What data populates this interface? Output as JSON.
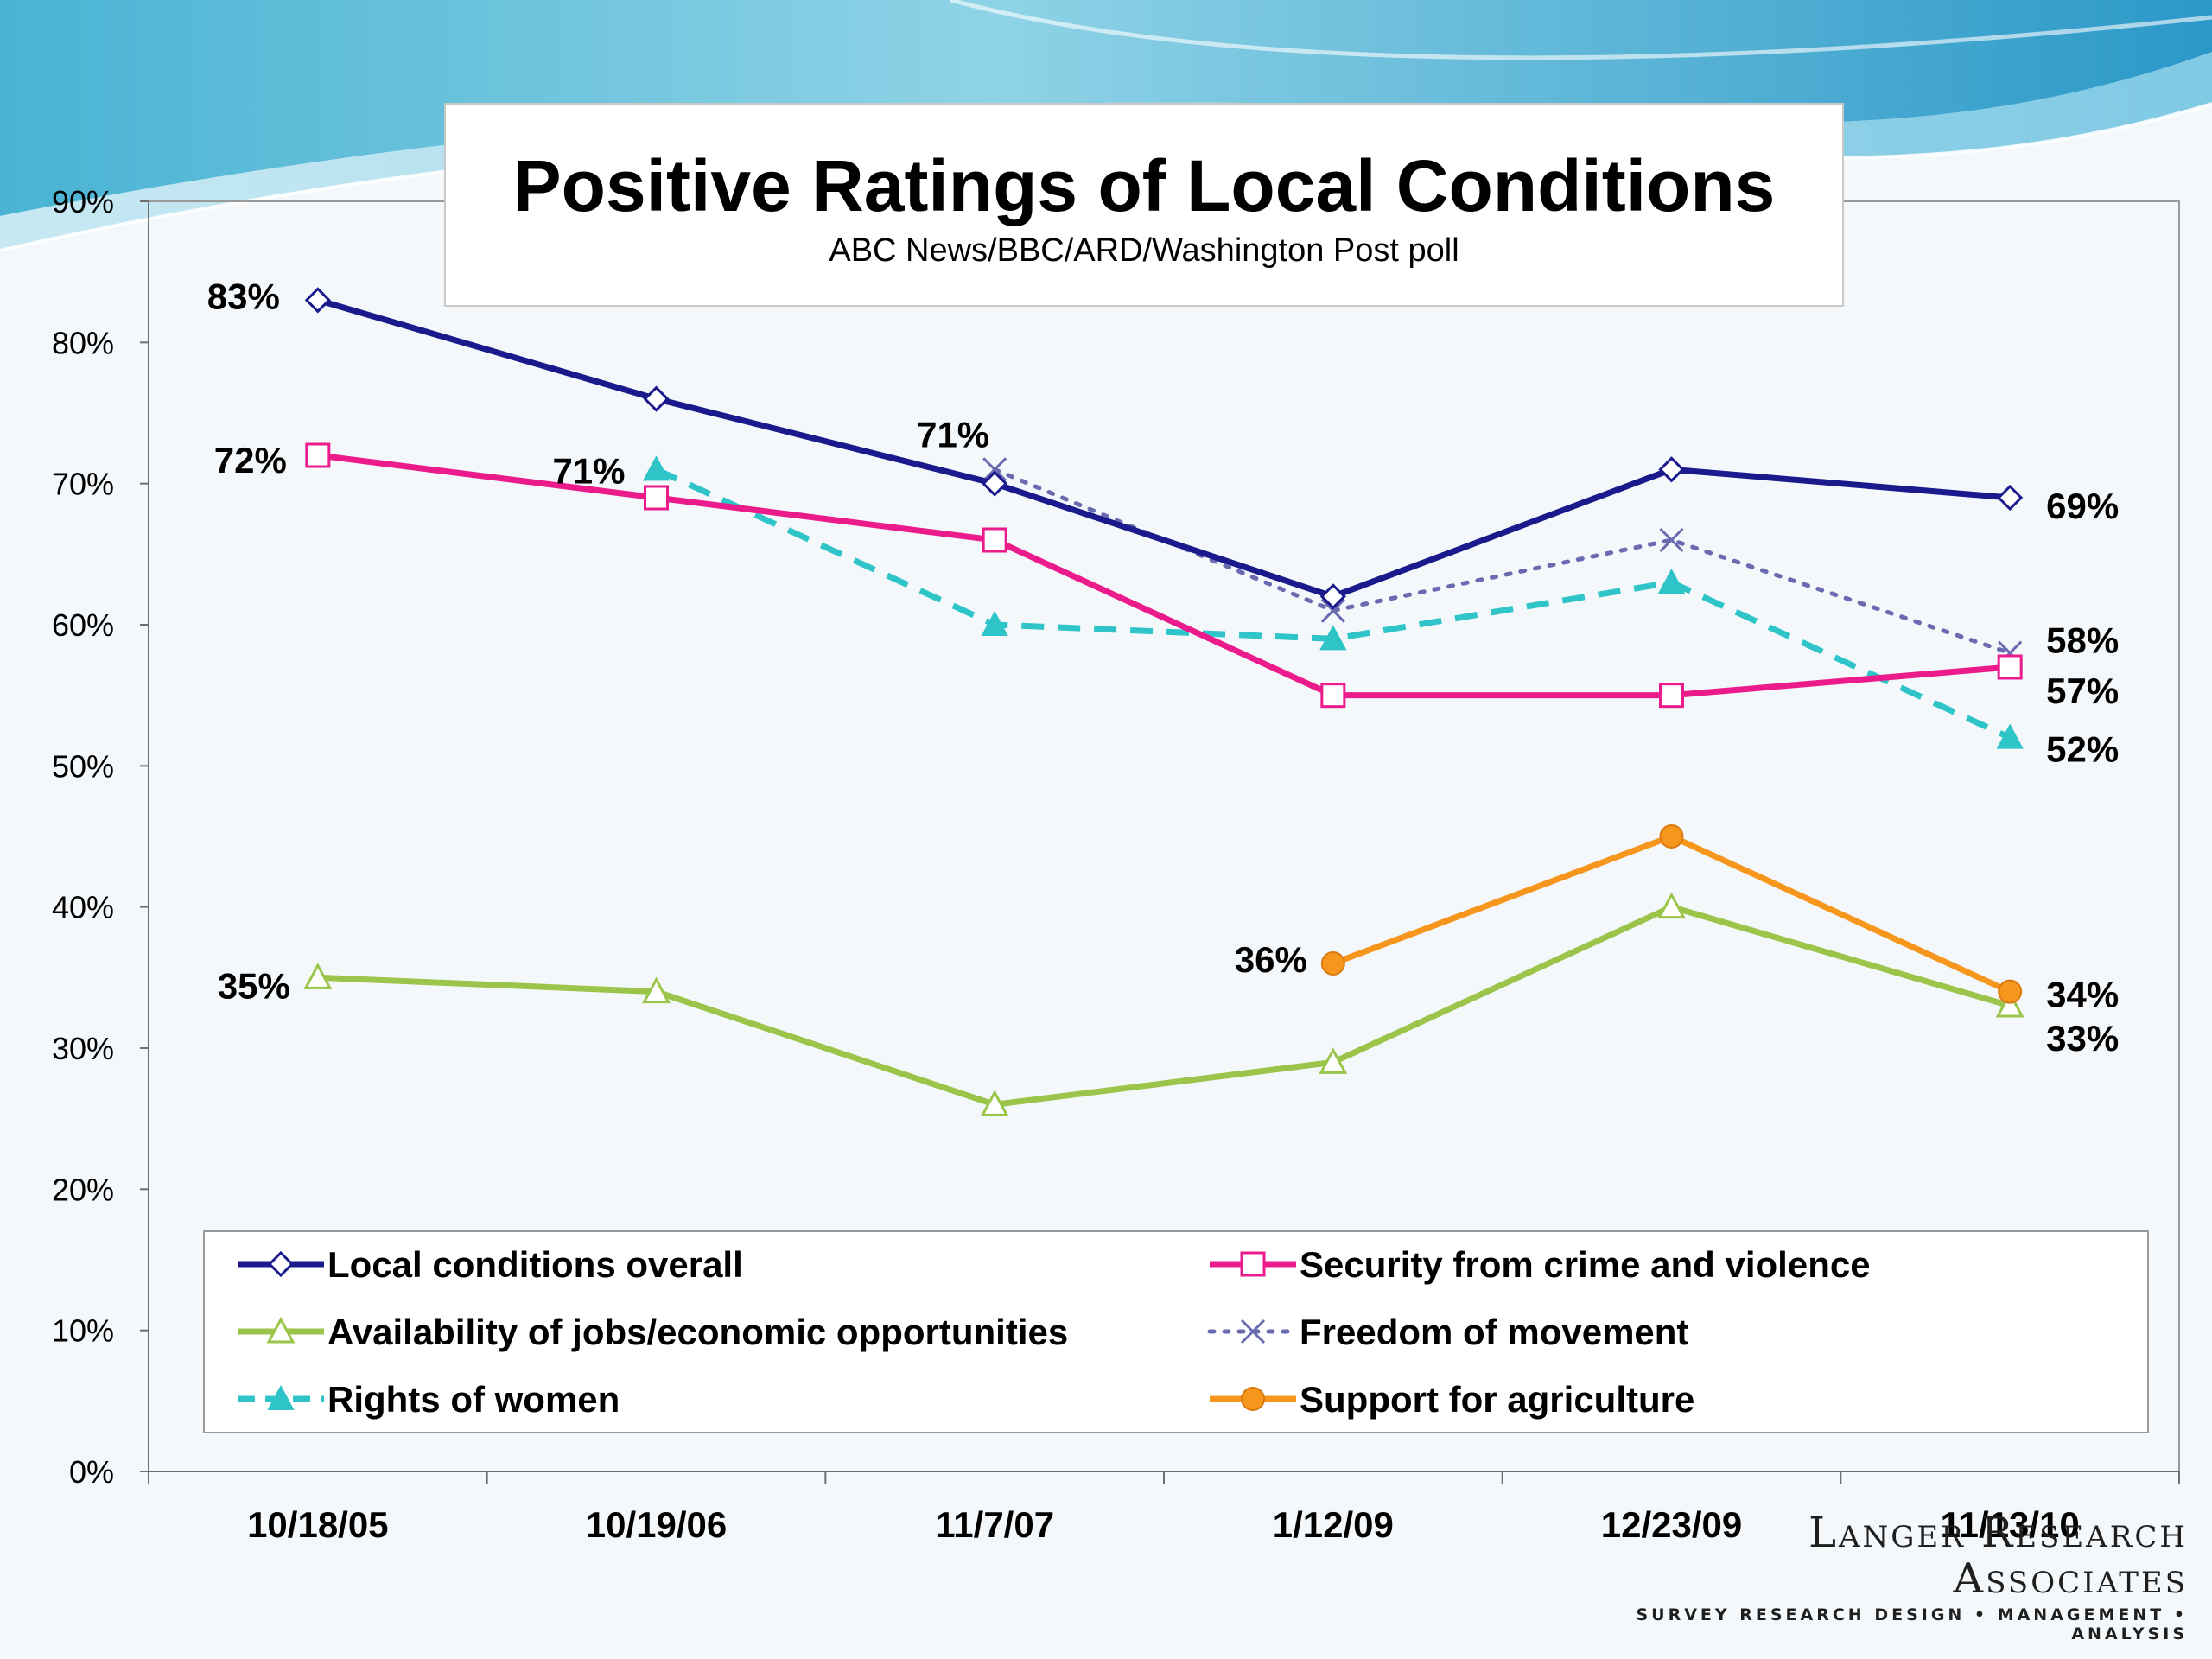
{
  "slide": {
    "footer_logo": {
      "name": "Langer Research Associates",
      "tagline": "SURVEY RESEARCH DESIGN • MANAGEMENT • ANALYSIS"
    }
  },
  "chart_data": {
    "type": "line",
    "title": "Positive Ratings of Local Conditions",
    "subtitle": "ABC News/BBC/ARD/Washington Post poll",
    "categories": [
      "10/18/05",
      "10/19/06",
      "11/7/07",
      "1/12/09",
      "12/23/09",
      "11/13/10"
    ],
    "y_ticks": [
      "0%",
      "10%",
      "20%",
      "30%",
      "40%",
      "50%",
      "60%",
      "70%",
      "80%",
      "90%"
    ],
    "ylim": [
      0,
      90
    ],
    "xlabel": "",
    "ylabel": "",
    "grid": false,
    "legend_position": "bottom",
    "series": [
      {
        "name": "Local conditions overall",
        "color": "#1a1a8c",
        "marker": "diamond-open",
        "line": "solid",
        "values": [
          83,
          76,
          70,
          62,
          71,
          69
        ],
        "labels": [
          {
            "index": 0,
            "text": "83%"
          },
          {
            "index": 5,
            "text": "69%"
          }
        ]
      },
      {
        "name": "Security from crime and violence",
        "color": "#ec1b8c",
        "marker": "square-open",
        "line": "solid",
        "values": [
          72,
          69,
          66,
          55,
          55,
          57
        ],
        "labels": [
          {
            "index": 0,
            "text": "72%"
          },
          {
            "index": 5,
            "text": "57%"
          }
        ]
      },
      {
        "name": "Availability of jobs/economic opportunities",
        "color": "#9bc54a",
        "marker": "triangle-open",
        "line": "solid",
        "values": [
          35,
          34,
          26,
          29,
          40,
          33
        ],
        "labels": [
          {
            "index": 0,
            "text": "35%"
          },
          {
            "index": 5,
            "text": "33%"
          }
        ]
      },
      {
        "name": "Freedom of movement",
        "color": "#6a6ab0",
        "marker": "x",
        "line": "dotted",
        "values": [
          null,
          null,
          71,
          61,
          66,
          58
        ],
        "labels": [
          {
            "index": 2,
            "text": "71%"
          },
          {
            "index": 5,
            "text": "58%"
          }
        ]
      },
      {
        "name": "Rights of women",
        "color": "#2ec4c8",
        "marker": "triangle-filled",
        "line": "dashed",
        "values": [
          null,
          71,
          60,
          59,
          63,
          52
        ],
        "labels": [
          {
            "index": 1,
            "text": "71%"
          },
          {
            "index": 5,
            "text": "52%"
          }
        ]
      },
      {
        "name": "Support for agriculture",
        "color": "#f7961d",
        "marker": "circle-filled",
        "line": "solid",
        "values": [
          null,
          null,
          null,
          36,
          45,
          34
        ],
        "labels": [
          {
            "index": 3,
            "text": "36%"
          },
          {
            "index": 5,
            "text": "34%"
          }
        ]
      }
    ]
  }
}
